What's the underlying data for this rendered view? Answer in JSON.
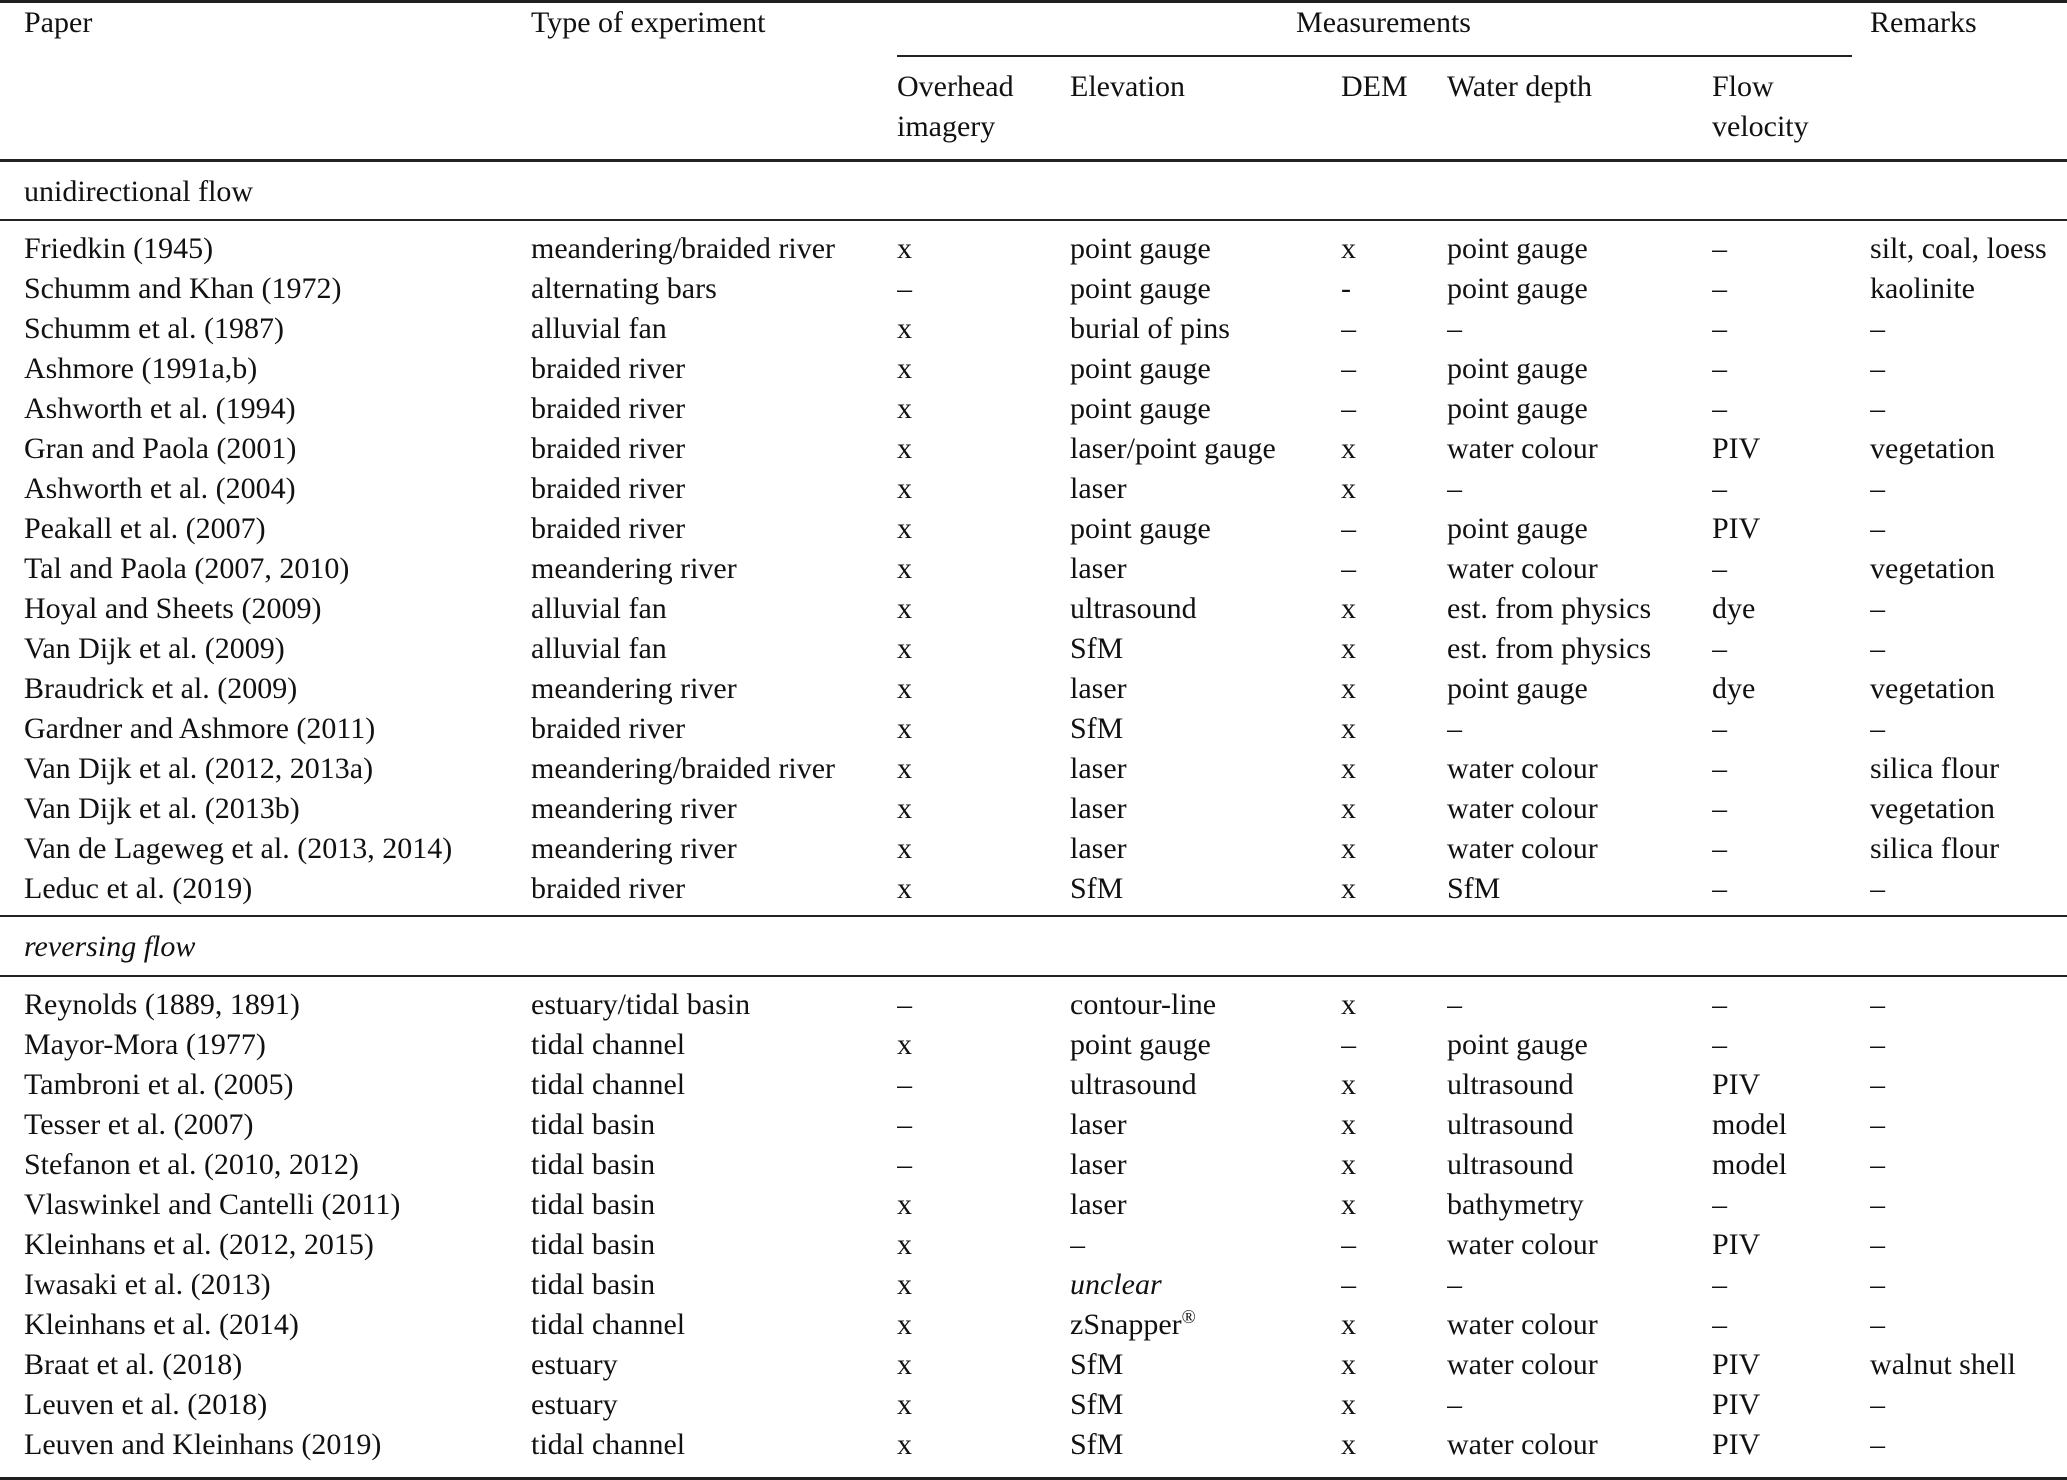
{
  "table": {
    "headers": {
      "paper": "Paper",
      "type_of_experiment": "Type of experiment",
      "measurements": "Measurements",
      "remarks": "Remarks",
      "sub_columns": [
        "Overhead imagery",
        "Elevation",
        "DEM",
        "Water depth",
        "Flow velocity"
      ]
    },
    "column_keys": [
      "paper",
      "type-of-experiment",
      "overhead-imagery",
      "elevation",
      "dem",
      "water-depth",
      "flow-velocity",
      "remarks"
    ],
    "italic_values": [
      "unclear"
    ],
    "sections": [
      {
        "label": "unidirectional flow",
        "italic": false,
        "rows": [
          [
            "Friedkin (1945)",
            "meandering/braided river",
            "x",
            "point gauge",
            "x",
            "point gauge",
            "–",
            "silt, coal, loess"
          ],
          [
            "Schumm and Khan (1972)",
            "alternating bars",
            "–",
            "point gauge",
            "-",
            "point gauge",
            "–",
            "kaolinite"
          ],
          [
            "Schumm et al. (1987)",
            "alluvial fan",
            "x",
            "burial of pins",
            "–",
            "–",
            "–",
            "–"
          ],
          [
            "Ashmore (1991a,b)",
            "braided river",
            "x",
            "point gauge",
            "–",
            "point gauge",
            "–",
            "–"
          ],
          [
            "Ashworth et al. (1994)",
            "braided river",
            "x",
            "point gauge",
            "–",
            "point gauge",
            "–",
            "–"
          ],
          [
            "Gran and Paola (2001)",
            "braided river",
            "x",
            "laser/point gauge",
            "x",
            "water colour",
            "PIV",
            "vegetation"
          ],
          [
            "Ashworth et al. (2004)",
            "braided river",
            "x",
            "laser",
            "x",
            "–",
            "–",
            "–"
          ],
          [
            "Peakall et al. (2007)",
            "braided river",
            "x",
            "point gauge",
            "–",
            "point gauge",
            "PIV",
            "–"
          ],
          [
            "Tal and Paola (2007, 2010)",
            "meandering river",
            "x",
            "laser",
            "–",
            "water colour",
            "–",
            "vegetation"
          ],
          [
            "Hoyal and Sheets (2009)",
            "alluvial fan",
            "x",
            "ultrasound",
            "x",
            "est. from physics",
            "dye",
            "–"
          ],
          [
            "Van Dijk et al. (2009)",
            "alluvial fan",
            "x",
            "SfM",
            "x",
            "est. from physics",
            "–",
            "–"
          ],
          [
            "Braudrick et al. (2009)",
            "meandering river",
            "x",
            "laser",
            "x",
            "point gauge",
            "dye",
            "vegetation"
          ],
          [
            "Gardner and Ashmore (2011)",
            "braided river",
            "x",
            "SfM",
            "x",
            "–",
            "–",
            "–"
          ],
          [
            "Van Dijk et al. (2012, 2013a)",
            "meandering/braided river",
            "x",
            "laser",
            "x",
            "water colour",
            "–",
            "silica flour"
          ],
          [
            "Van Dijk et al. (2013b)",
            "meandering river",
            "x",
            "laser",
            "x",
            "water colour",
            "–",
            "vegetation"
          ],
          [
            "Van de Lageweg et al. (2013, 2014)",
            "meandering river",
            "x",
            "laser",
            "x",
            "water colour",
            "–",
            "silica flour"
          ],
          [
            "Leduc et al. (2019)",
            "braided river",
            "x",
            "SfM",
            "x",
            "SfM",
            "–",
            "–"
          ]
        ]
      },
      {
        "label": "reversing flow",
        "italic": true,
        "rows": [
          [
            "Reynolds (1889, 1891)",
            "estuary/tidal basin",
            "–",
            "contour-line",
            "x",
            "–",
            "–",
            "–"
          ],
          [
            "Mayor-Mora (1977)",
            "tidal channel",
            "x",
            "point gauge",
            "–",
            "point gauge",
            "–",
            "–"
          ],
          [
            "Tambroni et al. (2005)",
            "tidal channel",
            "–",
            "ultrasound",
            "x",
            "ultrasound",
            "PIV",
            "–"
          ],
          [
            "Tesser et al. (2007)",
            "tidal basin",
            "–",
            "laser",
            "x",
            "ultrasound",
            "model",
            "–"
          ],
          [
            "Stefanon et al. (2010, 2012)",
            "tidal basin",
            "–",
            "laser",
            "x",
            "ultrasound",
            "model",
            "–"
          ],
          [
            "Vlaswinkel and Cantelli (2011)",
            "tidal basin",
            "x",
            "laser",
            "x",
            "bathymetry",
            "–",
            "–"
          ],
          [
            "Kleinhans et al. (2012, 2015)",
            "tidal basin",
            "x",
            "–",
            "–",
            "water colour",
            "PIV",
            "–"
          ],
          [
            "Iwasaki et al. (2013)",
            "tidal basin",
            "x",
            "unclear",
            "–",
            "–",
            "–",
            "–"
          ],
          [
            "Kleinhans et al. (2014)",
            "tidal channel",
            "x",
            "zSnapper®",
            "x",
            "water colour",
            "–",
            "–"
          ],
          [
            "Braat et al. (2018)",
            "estuary",
            "x",
            "SfM",
            "x",
            "water colour",
            "PIV",
            "walnut shell"
          ],
          [
            "Leuven et al. (2018)",
            "estuary",
            "x",
            "SfM",
            "x",
            "–",
            "PIV",
            "–"
          ],
          [
            "Leuven and Kleinhans (2019)",
            "tidal channel",
            "x",
            "SfM",
            "x",
            "water colour",
            "PIV",
            "–"
          ]
        ]
      }
    ]
  }
}
